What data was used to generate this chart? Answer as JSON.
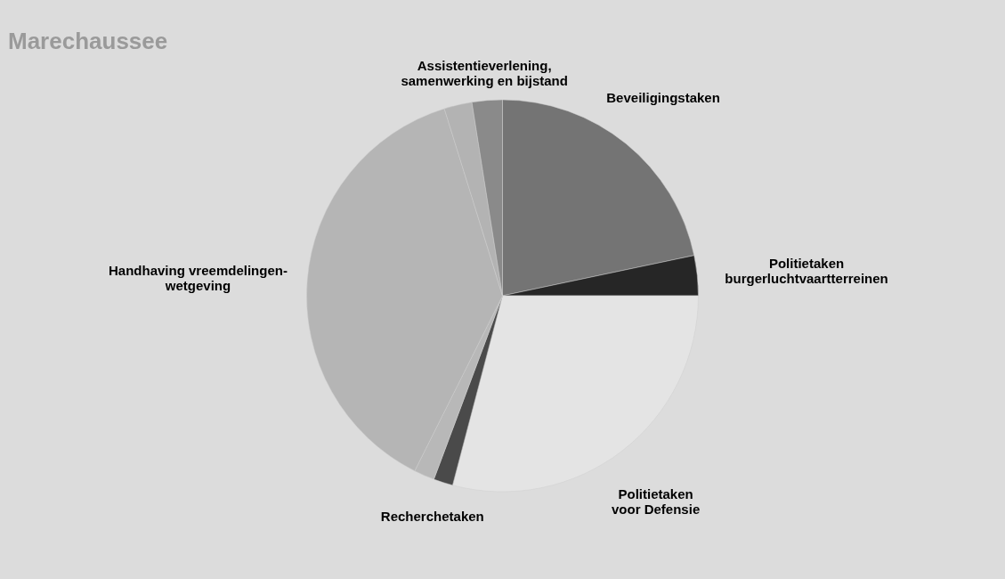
{
  "chart_data": {
    "type": "pie",
    "title": "Marechaussee",
    "categories": [
      "Beveiligingstaken",
      "Politietaken\nburgerluchtvaartterreinen",
      "Politietaken\nvoor Defensie",
      "Recherchetaken",
      null,
      "Handhaving vreemdelingen-\nwetgeving",
      null,
      "Assistentieverlening,\nsamenwerking en bijstand"
    ],
    "values": [
      21.7,
      3.3,
      29.1,
      1.6,
      1.7,
      37.8,
      2.3,
      2.5
    ],
    "colors": [
      "#747474",
      "#262626",
      "#e4e4e4",
      "#4a4a4a",
      "#b8b8b8",
      "#b5b5b5",
      "#b3b3b3",
      "#8a8a8a"
    ],
    "legend": false
  }
}
